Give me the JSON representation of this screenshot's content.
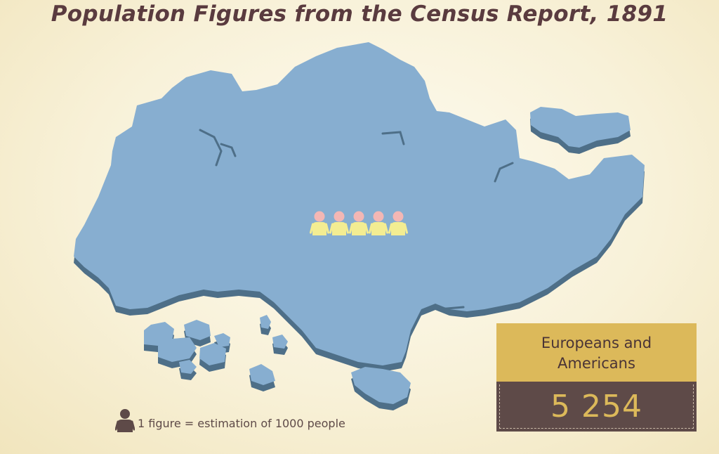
{
  "title": "Population Figures from the Census Report, 1891",
  "stat": {
    "label": "Europeans and Americans",
    "value": "5 254"
  },
  "figures": {
    "count": 5,
    "icon": "person-icon"
  },
  "legend": {
    "text": "1 figure = estimation of 1000 people",
    "icon": "person-icon"
  },
  "colors": {
    "title": "#5a3b3f",
    "land": "#87aed0",
    "land_shadow": "#4e6f88",
    "person_head": "#f4b7b4",
    "person_body": "#f3ed92",
    "label_bg": "#dcb95a",
    "value_bg": "#5e4a48",
    "value_text": "#dcb95a"
  }
}
